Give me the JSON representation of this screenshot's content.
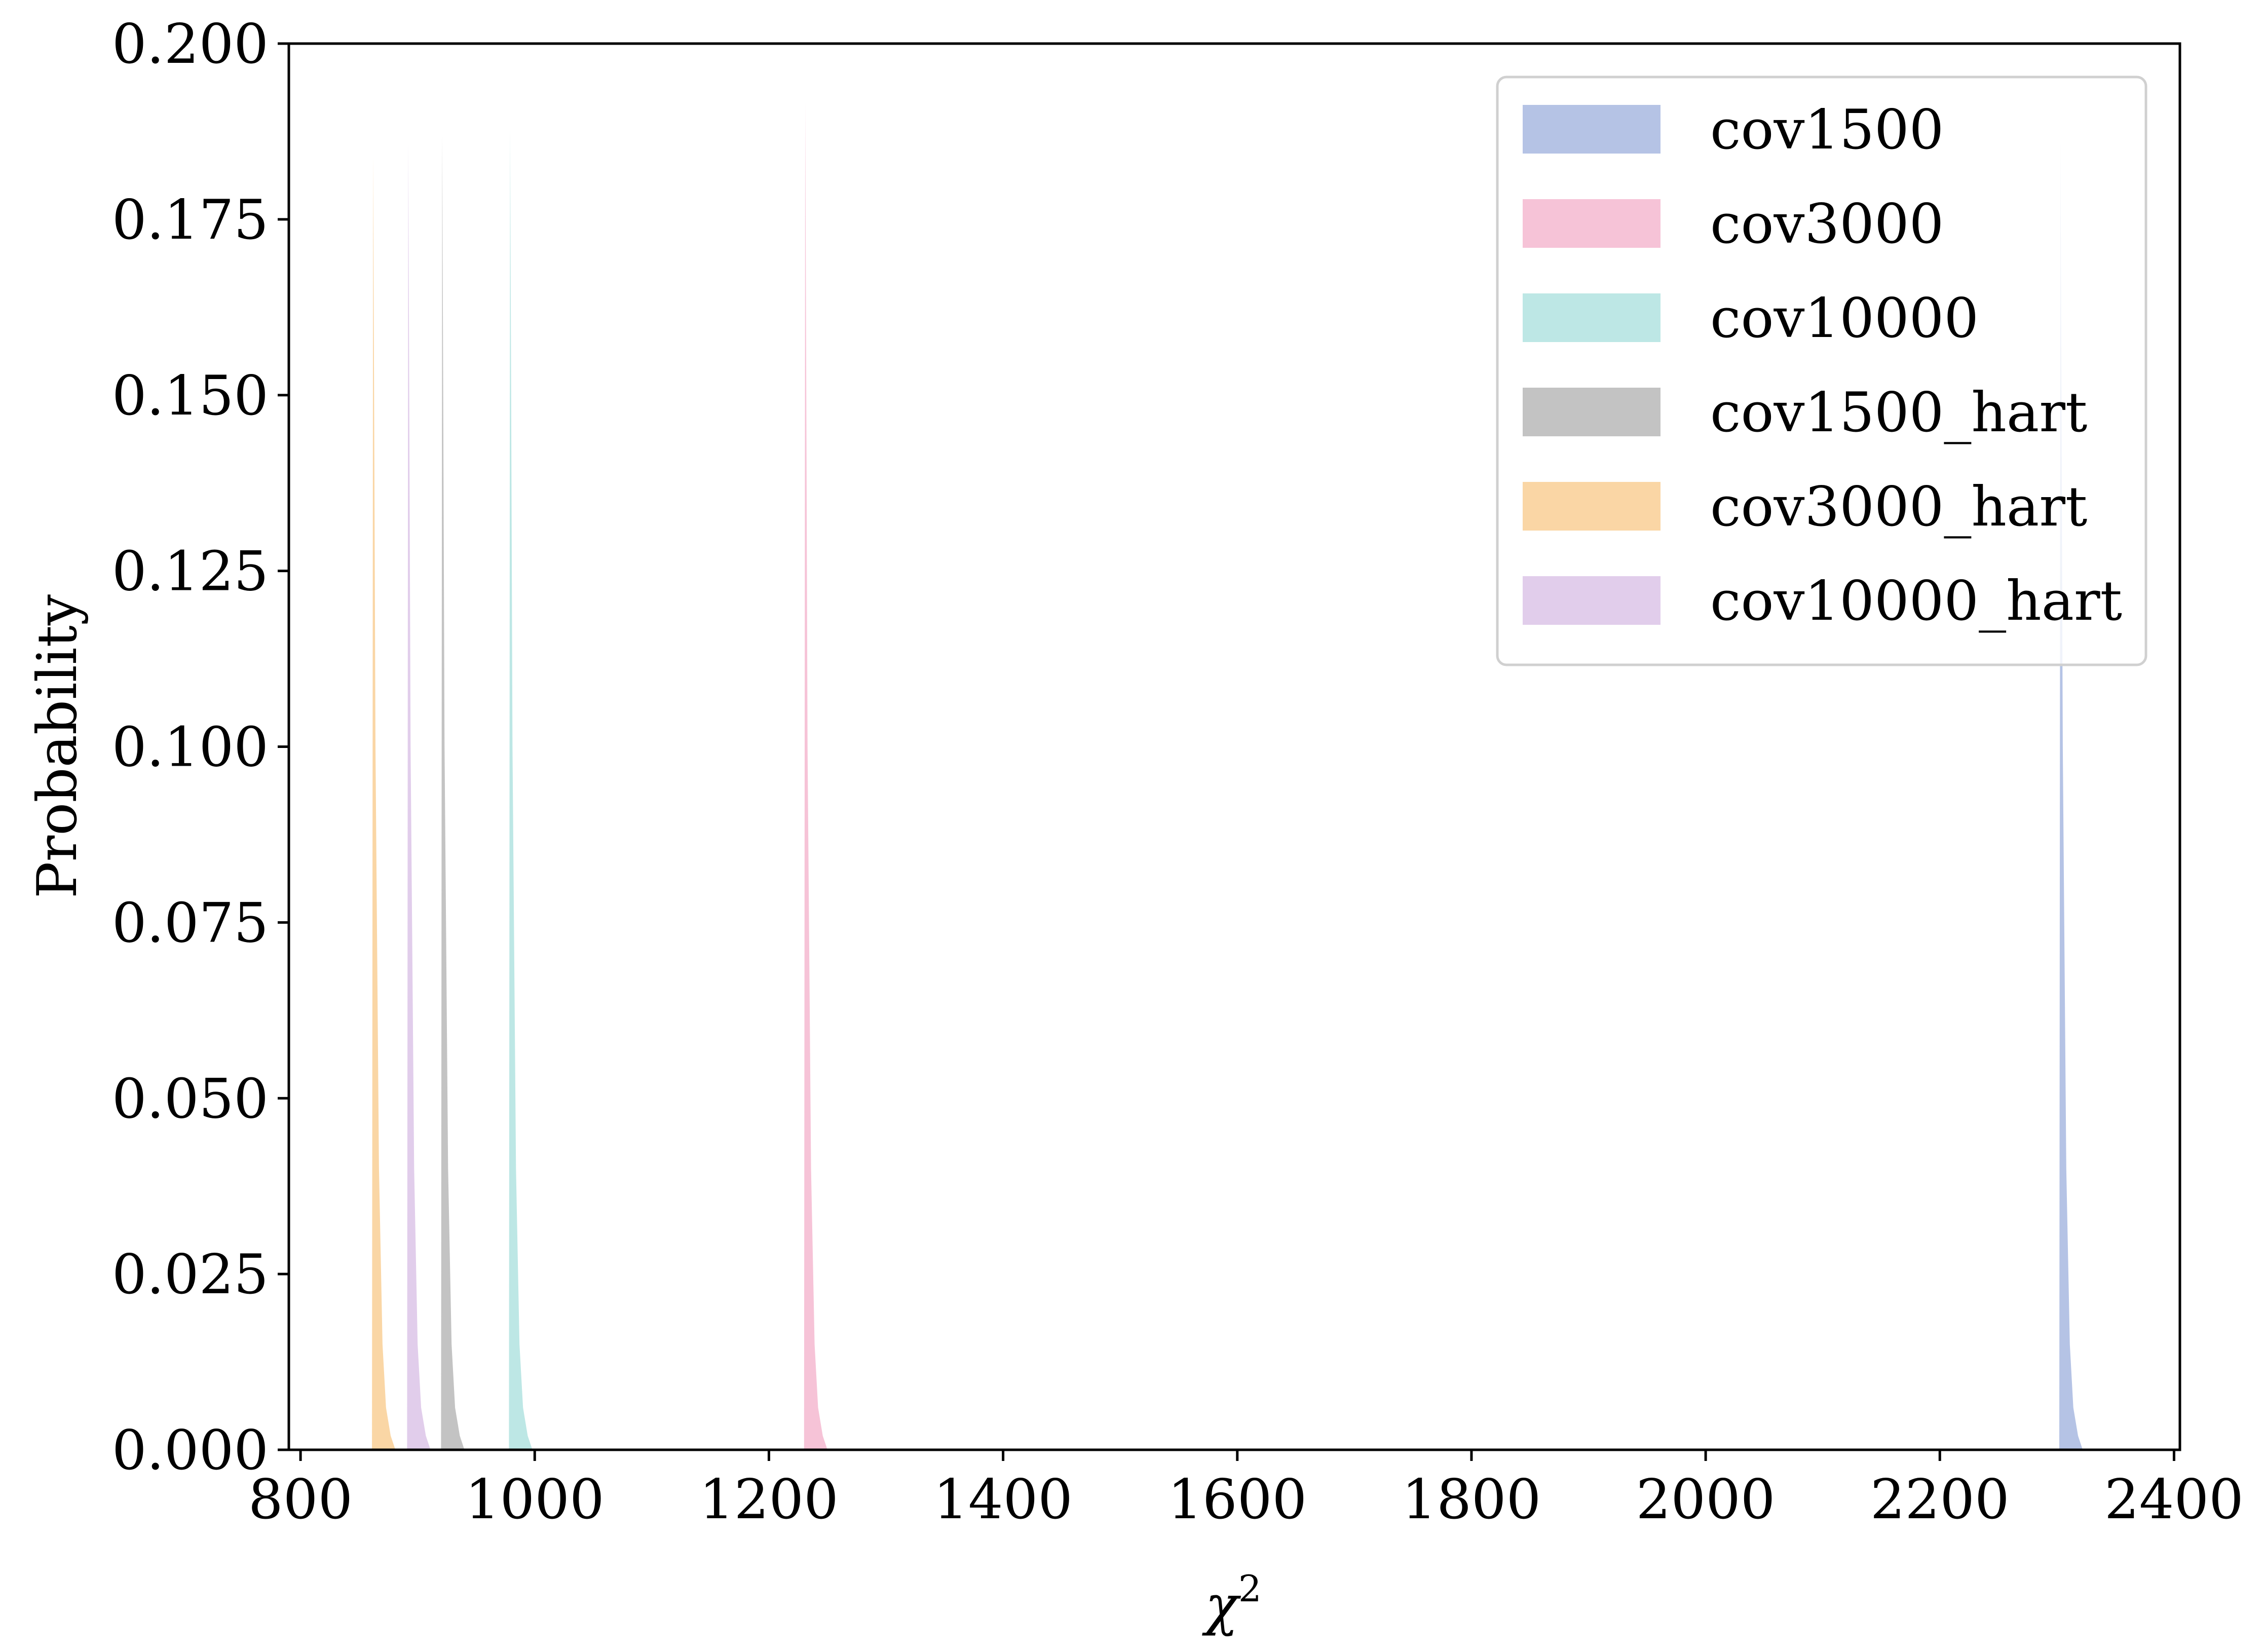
{
  "chart_data": {
    "type": "area",
    "title": "",
    "xlabel": "χ",
    "xlabel_sup": "2",
    "ylabel": "Probability",
    "xlim": [
      790,
      2405
    ],
    "ylim": [
      0,
      0.2
    ],
    "xticks": [
      800,
      1000,
      1200,
      1400,
      1600,
      1800,
      2000,
      2200,
      2400
    ],
    "xtick_labels": [
      "800",
      "1000",
      "1200",
      "1400",
      "1600",
      "1800",
      "2000",
      "2200",
      "2400"
    ],
    "yticks": [
      0,
      0.025,
      0.05,
      0.075,
      0.1,
      0.125,
      0.15,
      0.175,
      0.2
    ],
    "ytick_labels": [
      "0.000",
      "0.025",
      "0.050",
      "0.075",
      "0.100",
      "0.125",
      "0.150",
      "0.175",
      "0.200"
    ],
    "grid": false,
    "legend_position": "top-right",
    "series": [
      {
        "name": "cov1500",
        "color": "#a8b8e0",
        "x": [
          2302,
          2303,
          2305,
          2308,
          2311,
          2314,
          2318,
          2322
        ],
        "y": [
          0,
          0.186,
          0.1,
          0.04,
          0.015,
          0.006,
          0.002,
          0
        ]
      },
      {
        "name": "cov3000",
        "color": "#f4b8d0",
        "x": [
          1230,
          1231,
          1233,
          1236,
          1239,
          1242,
          1246,
          1250
        ],
        "y": [
          0,
          0.192,
          0.1,
          0.04,
          0.015,
          0.006,
          0.002,
          0
        ]
      },
      {
        "name": "cov10000",
        "color": "#b2e3e0",
        "x": [
          978,
          979,
          981,
          984,
          987,
          990,
          994,
          998
        ],
        "y": [
          0,
          0.188,
          0.1,
          0.04,
          0.015,
          0.006,
          0.002,
          0
        ]
      },
      {
        "name": "cov1500_hart",
        "color": "#b8b8b8",
        "x": [
          920,
          921,
          923,
          926,
          929,
          932,
          936,
          940
        ],
        "y": [
          0,
          0.187,
          0.1,
          0.04,
          0.015,
          0.006,
          0.002,
          0
        ]
      },
      {
        "name": "cov3000_hart",
        "color": "#f9cf95",
        "x": [
          861,
          862,
          864,
          867,
          870,
          873,
          877,
          881
        ],
        "y": [
          0,
          0.184,
          0.1,
          0.04,
          0.015,
          0.006,
          0.002,
          0
        ]
      },
      {
        "name": "cov10000_hart",
        "color": "#dcc4e8",
        "x": [
          891,
          892,
          894,
          897,
          900,
          903,
          907,
          911
        ],
        "y": [
          0,
          0.186,
          0.1,
          0.04,
          0.015,
          0.006,
          0.002,
          0
        ]
      }
    ]
  }
}
